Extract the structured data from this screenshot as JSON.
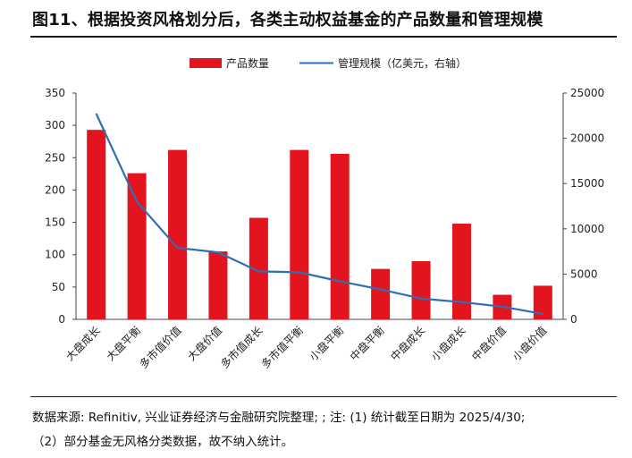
{
  "title": "图11、根据投资风格划分后，各类主动权益基金的产品数量和管理规模",
  "notes": {
    "line1": "数据来源: Refinitiv, 兴业证券经济与金融研究院整理; ; 注: (1) 统计截至日期为 2025/4/30;",
    "line2": "（2）部分基金无风格分类数据，故不纳入统计。"
  },
  "colors": {
    "bar": "#e3141d",
    "line": "#2f6eb5",
    "axis": "#444444"
  },
  "chart_data": {
    "type": "bar",
    "categories": [
      "大盘成长",
      "大盘平衡",
      "多市值价值",
      "大盘价值",
      "多市值成长",
      "多市值平衡",
      "小盘平衡",
      "中盘平衡",
      "中盘成长",
      "小盘成长",
      "中盘价值",
      "小盘价值"
    ],
    "series": [
      {
        "name": "产品数量",
        "type": "bar",
        "axis": "left",
        "values": [
          293,
          226,
          262,
          105,
          157,
          262,
          256,
          78,
          90,
          148,
          38,
          52
        ]
      },
      {
        "name": "管理规模（亿美元，右轴）",
        "type": "line",
        "axis": "right",
        "values": [
          22700,
          13000,
          7900,
          7400,
          5300,
          5200,
          4200,
          3300,
          2300,
          1900,
          1400,
          600
        ]
      }
    ],
    "ylim": [
      0,
      350
    ],
    "yticks": [
      "0",
      "50",
      "100",
      "150",
      "200",
      "250",
      "300",
      "350"
    ],
    "y2lim": [
      0,
      25000
    ],
    "y2ticks": [
      "0",
      "5000",
      "10000",
      "15000",
      "20000",
      "25000"
    ],
    "legend_position": "top-center",
    "grid": false
  }
}
